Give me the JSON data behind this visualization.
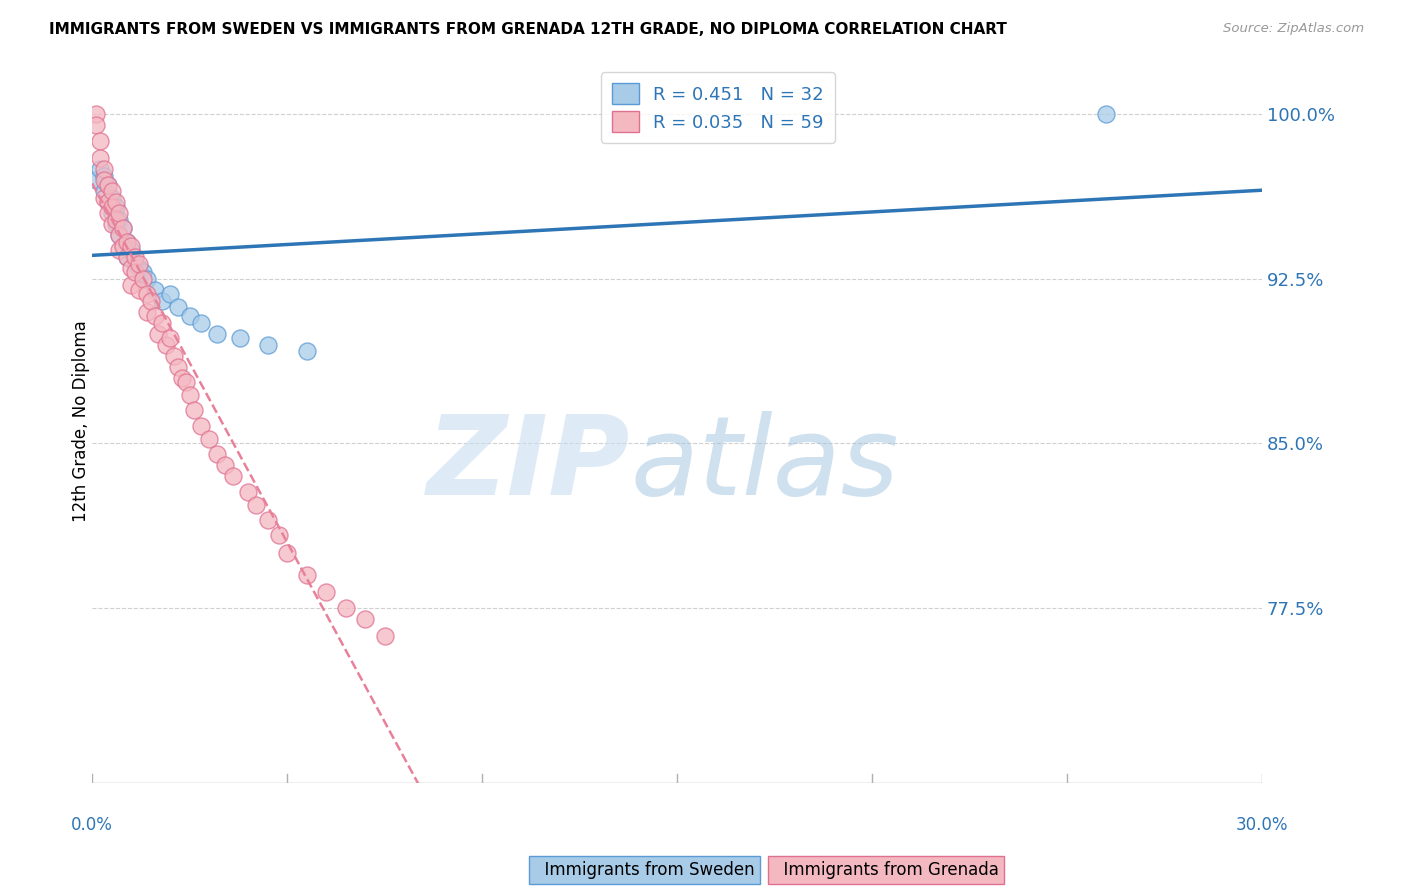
{
  "title": "IMMIGRANTS FROM SWEDEN VS IMMIGRANTS FROM GRENADA 12TH GRADE, NO DIPLOMA CORRELATION CHART",
  "source": "Source: ZipAtlas.com",
  "ylabel": "12th Grade, No Diploma",
  "ytick_labels": [
    "100.0%",
    "92.5%",
    "85.0%",
    "77.5%"
  ],
  "ytick_values": [
    1.0,
    0.925,
    0.85,
    0.775
  ],
  "xlim": [
    0.0,
    0.3
  ],
  "ylim": [
    0.695,
    1.025
  ],
  "legend_sweden": "R = 0.451   N = 32",
  "legend_grenada": "R = 0.035   N = 59",
  "sweden_color": "#a8cce8",
  "grenada_color": "#f4b8c1",
  "sweden_edge_color": "#5b9bd5",
  "grenada_edge_color": "#e07090",
  "trendline_sweden_color": "#2e75b6",
  "trendline_grenada_color": "#e88099",
  "legend_text_color": "#2e75b6",
  "ytick_color": "#2e75b6",
  "xtick_label_color": "#2e75b6",
  "watermark_zip_color": "#c8dff0",
  "watermark_atlas_color": "#a0c4e0",
  "sweden_x": [
    0.001,
    0.002,
    0.003,
    0.003,
    0.004,
    0.004,
    0.005,
    0.005,
    0.006,
    0.006,
    0.007,
    0.007,
    0.008,
    0.008,
    0.009,
    0.009,
    0.01,
    0.011,
    0.012,
    0.013,
    0.014,
    0.016,
    0.018,
    0.02,
    0.022,
    0.025,
    0.028,
    0.032,
    0.038,
    0.045,
    0.055,
    0.26
  ],
  "sweden_y": [
    0.97,
    0.975,
    0.965,
    0.972,
    0.96,
    0.968,
    0.955,
    0.962,
    0.95,
    0.958,
    0.945,
    0.952,
    0.94,
    0.948,
    0.935,
    0.942,
    0.938,
    0.932,
    0.93,
    0.928,
    0.925,
    0.92,
    0.915,
    0.918,
    0.912,
    0.908,
    0.905,
    0.9,
    0.898,
    0.895,
    0.892,
    1.0
  ],
  "grenada_x": [
    0.001,
    0.001,
    0.002,
    0.002,
    0.003,
    0.003,
    0.003,
    0.004,
    0.004,
    0.004,
    0.005,
    0.005,
    0.005,
    0.006,
    0.006,
    0.007,
    0.007,
    0.007,
    0.008,
    0.008,
    0.009,
    0.009,
    0.01,
    0.01,
    0.01,
    0.011,
    0.011,
    0.012,
    0.012,
    0.013,
    0.014,
    0.014,
    0.015,
    0.016,
    0.017,
    0.018,
    0.019,
    0.02,
    0.021,
    0.022,
    0.023,
    0.024,
    0.025,
    0.026,
    0.028,
    0.03,
    0.032,
    0.034,
    0.036,
    0.04,
    0.042,
    0.045,
    0.048,
    0.05,
    0.055,
    0.06,
    0.065,
    0.07,
    0.075
  ],
  "grenada_y": [
    1.0,
    0.995,
    0.988,
    0.98,
    0.975,
    0.97,
    0.962,
    0.968,
    0.96,
    0.955,
    0.965,
    0.958,
    0.95,
    0.96,
    0.952,
    0.955,
    0.945,
    0.938,
    0.948,
    0.94,
    0.942,
    0.935,
    0.94,
    0.93,
    0.922,
    0.935,
    0.928,
    0.932,
    0.92,
    0.925,
    0.918,
    0.91,
    0.915,
    0.908,
    0.9,
    0.905,
    0.895,
    0.898,
    0.89,
    0.885,
    0.88,
    0.878,
    0.872,
    0.865,
    0.858,
    0.852,
    0.845,
    0.84,
    0.835,
    0.828,
    0.822,
    0.815,
    0.808,
    0.8,
    0.79,
    0.782,
    0.775,
    0.77,
    0.762
  ]
}
